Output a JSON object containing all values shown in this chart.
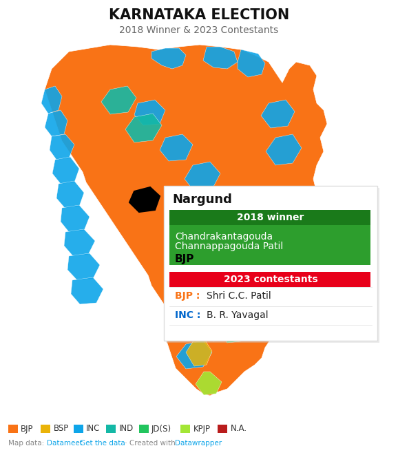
{
  "title": "KARNATAKA ELECTION",
  "subtitle": "2018 Winner & 2023 Contestants",
  "popup_title": "Nargund",
  "winner_label": "2018 winner",
  "winner_name_line1": "Chandrakantagouda",
  "winner_name_line2": "Channappagouda Patil",
  "winner_party": "BJP",
  "contestants_label": "2023 contestants",
  "contestant1_party": "BJP :",
  "contestant1_name": "Shri C.C. Patil",
  "contestant2_party": "INC :",
  "contestant2_name": "B. R. Yavagal",
  "legend_items": [
    {
      "label": "BJP",
      "color": "#f97316"
    },
    {
      "label": "BSP",
      "color": "#eab308"
    },
    {
      "label": "INC",
      "color": "#0ea5e9"
    },
    {
      "label": "IND",
      "color": "#14b8a6"
    },
    {
      "label": "JD(S)",
      "color": "#22c55e"
    },
    {
      "label": "KPJP",
      "color": "#a3e635"
    },
    {
      "label": "N.A.",
      "color": "#b91c1c"
    }
  ],
  "footer_text": "Map data: Datameet · Get the data · Created with Datawrapper",
  "footer_link_color": "#0ea5e9",
  "footer_plain_color": "#888888",
  "winner_header_color": "#1a7a1a",
  "winner_body_color": "#2d9e2d",
  "contestants_header_color": "#e8001a",
  "popup_bg": "#ffffff",
  "popup_border": "#dddddd",
  "bjp_color": "#f97316",
  "inc_color": "#0066cc",
  "title_color": "#111111",
  "subtitle_color": "#666666"
}
